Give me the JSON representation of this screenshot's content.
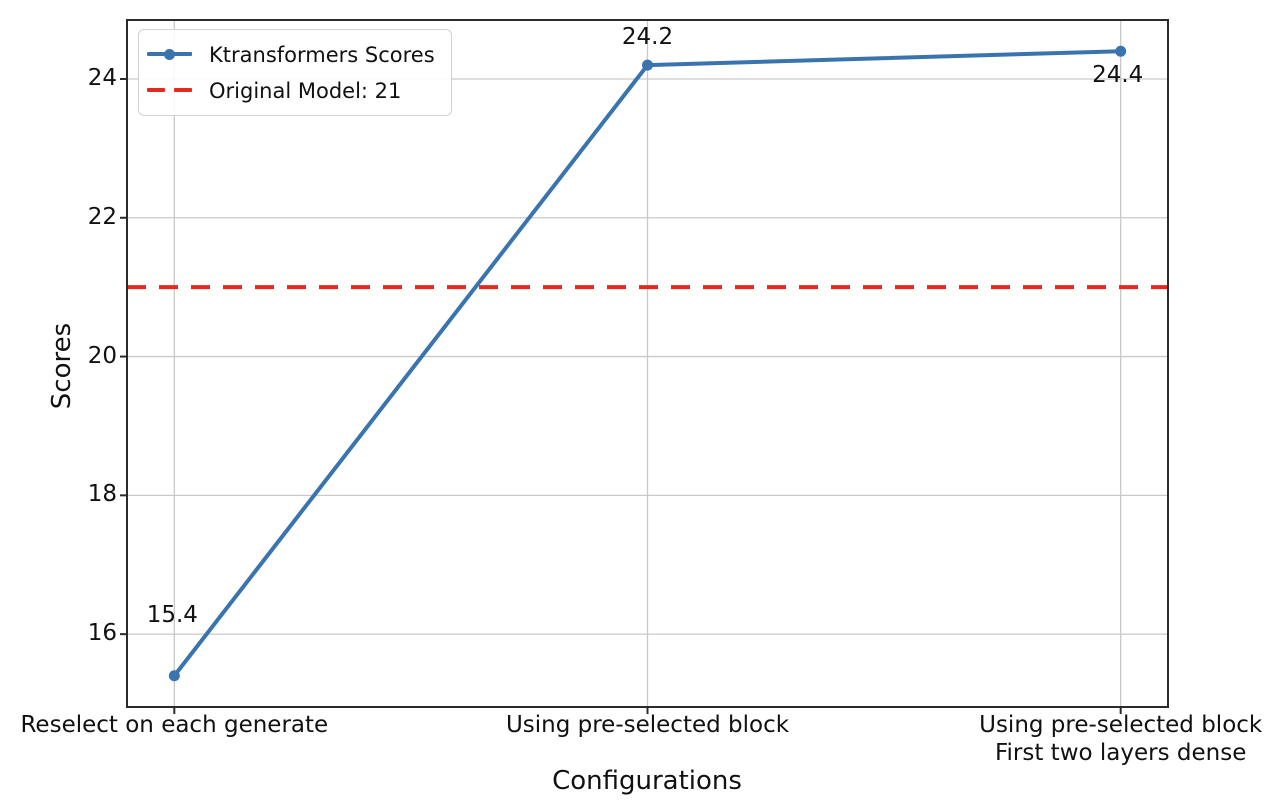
{
  "chart_data": {
    "type": "line",
    "title": "",
    "xlabel": "Configurations",
    "ylabel": "Scores",
    "categories": [
      "Reselect on each generate",
      "Using pre-selected block",
      "Using pre-selected block\nFirst two layers dense"
    ],
    "series": [
      {
        "name": "Ktransformers Scores",
        "values": [
          15.4,
          24.2,
          24.4
        ],
        "data_labels": [
          "15.4",
          "24.2",
          "24.4"
        ],
        "label_offsets": [
          [
            -2,
            -60
          ],
          [
            0,
            -27
          ],
          [
            -3,
            25
          ]
        ],
        "color": "#3a74ae",
        "marker": "circle"
      }
    ],
    "baseline": {
      "label": "Original Model: 21",
      "value": 21,
      "color": "#e6281e",
      "style": "dashed"
    },
    "yticks": [
      16,
      18,
      20,
      22,
      24
    ],
    "ylim": [
      14.95,
      24.85
    ],
    "grid": true,
    "legend_position": "upper-left",
    "colors": {
      "grid": "#c9c9c9",
      "spine": "#2b2b2b",
      "text": "#111111",
      "background": "#ffffff"
    }
  }
}
